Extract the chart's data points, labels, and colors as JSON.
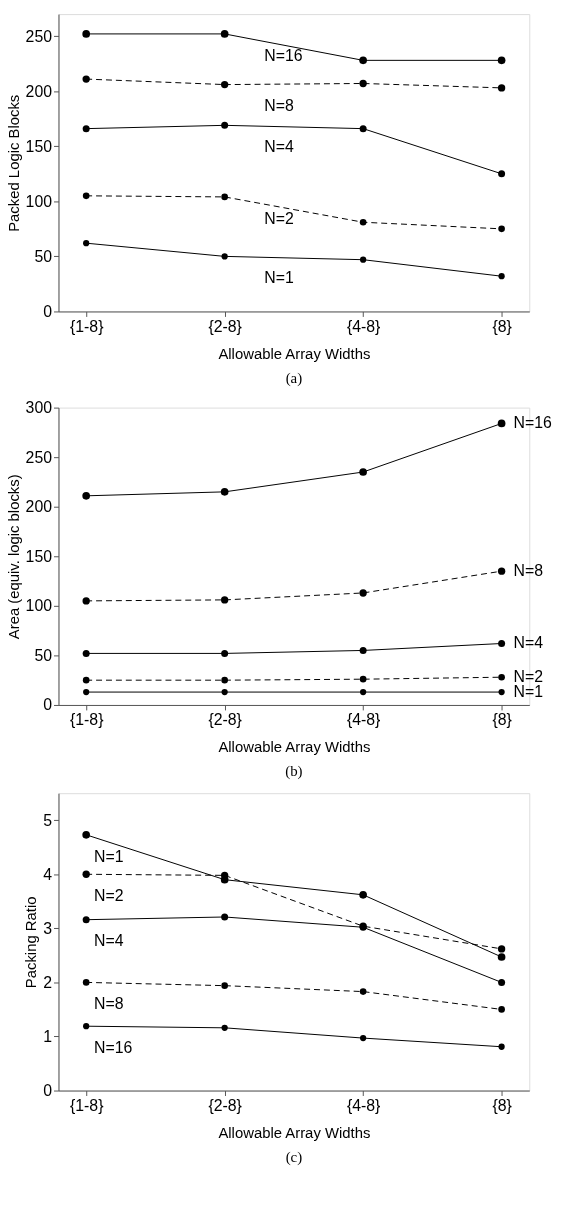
{
  "chart_data": [
    {
      "type": "line",
      "xlabel": "Allowable Array Widths",
      "ylabel": "Packed Logic Blocks",
      "categories": [
        "{1-8}",
        "{2-8}",
        "{4-8}",
        "{8}"
      ],
      "ylim": [
        0,
        270
      ],
      "yticks": [
        0,
        50,
        100,
        150,
        200,
        250
      ],
      "marker": "circle",
      "grid": false,
      "annotations": [
        "(a)"
      ],
      "series": [
        {
          "name": "N=16",
          "color": "#000000",
          "line_style": "solid",
          "values": [
            252,
            252,
            228,
            228
          ]
        },
        {
          "name": "N=8",
          "color": "#000000",
          "line_style": "dashed",
          "values": [
            211,
            206,
            207,
            203
          ]
        },
        {
          "name": "N=4",
          "color": "#000000",
          "line_style": "solid",
          "values": [
            166,
            169,
            166,
            125
          ]
        },
        {
          "name": "N=2",
          "color": "#000000",
          "line_style": "dashed",
          "values": [
            105,
            104,
            81,
            75
          ]
        },
        {
          "name": "N=1",
          "color": "#000000",
          "line_style": "solid",
          "values": [
            62,
            50,
            47,
            32
          ]
        }
      ]
    },
    {
      "type": "line",
      "xlabel": "Allowable Array Widths",
      "ylabel": "Area (equiv. logic blocks)",
      "categories": [
        "{1-8}",
        "{2-8}",
        "{4-8}",
        "{8}"
      ],
      "ylim": [
        0,
        300
      ],
      "yticks": [
        0,
        50,
        100,
        150,
        200,
        250,
        300
      ],
      "marker": "circle",
      "grid": false,
      "annotations": [
        "(b)"
      ],
      "series": [
        {
          "name": "N=16",
          "color": "#000000",
          "line_style": "solid",
          "values": [
            211,
            215,
            235,
            284
          ]
        },
        {
          "name": "N=8",
          "color": "#000000",
          "line_style": "dashed",
          "values": [
            105,
            106,
            113,
            135
          ]
        },
        {
          "name": "N=4",
          "color": "#000000",
          "line_style": "solid",
          "values": [
            52,
            52,
            55,
            62
          ]
        },
        {
          "name": "N=2",
          "color": "#000000",
          "line_style": "dashed",
          "values": [
            25,
            25,
            26,
            28
          ]
        },
        {
          "name": "N=1",
          "color": "#000000",
          "line_style": "solid",
          "values": [
            13,
            13,
            13,
            13
          ]
        }
      ]
    },
    {
      "type": "line",
      "xlabel": "Allowable Array Widths",
      "ylabel": "Packing Ratio",
      "categories": [
        "{1-8}",
        "{2-8}",
        "{4-8}",
        "{8}"
      ],
      "ylim": [
        0,
        5.5
      ],
      "yticks": [
        0,
        1,
        2,
        3,
        4,
        5
      ],
      "marker": "circle",
      "grid": false,
      "annotations": [
        "(c)"
      ],
      "series": [
        {
          "name": "N=1",
          "color": "#000000",
          "line_style": "solid",
          "values": [
            4.73,
            3.9,
            3.62,
            2.47
          ]
        },
        {
          "name": "N=2",
          "color": "#000000",
          "line_style": "dashed",
          "values": [
            4.0,
            3.98,
            3.04,
            2.62
          ]
        },
        {
          "name": "N=4",
          "color": "#000000",
          "line_style": "solid",
          "values": [
            3.16,
            3.21,
            3.02,
            2.0
          ]
        },
        {
          "name": "N=8",
          "color": "#000000",
          "line_style": "dashed",
          "values": [
            2.0,
            1.94,
            1.83,
            1.5
          ]
        },
        {
          "name": "N=16",
          "color": "#000000",
          "line_style": "solid",
          "values": [
            1.19,
            1.16,
            0.97,
            0.81
          ]
        }
      ]
    }
  ]
}
